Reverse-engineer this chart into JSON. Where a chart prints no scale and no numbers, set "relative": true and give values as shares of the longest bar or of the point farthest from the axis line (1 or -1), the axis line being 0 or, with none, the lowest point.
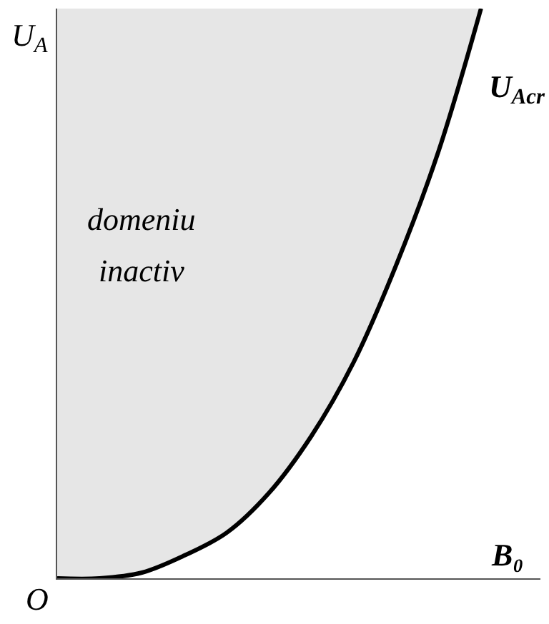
{
  "chart_data": {
    "type": "line",
    "relative": true,
    "xlabel": "B₀",
    "ylabel": "U$_{A}$",
    "categories": [
      null,
      null,
      null,
      null,
      null,
      null,
      null,
      null,
      null,
      null,
      null
    ],
    "series": [
      {
        "name": "U$_{Acr}$",
        "color": "#000000",
        "values": [
          0,
          0,
          0.01,
          0.04,
          0.08,
          0.15,
          0.25,
          0.38,
          0.55,
          0.75,
          1
        ],
        "lower": [
          0,
          0,
          0.01,
          0.04,
          0.08,
          0.15,
          0.25,
          0.38,
          0.55,
          0.75,
          1
        ],
        "upper": [
          1,
          1,
          1,
          1,
          1,
          1,
          1,
          1,
          1,
          1,
          1
        ]
      }
    ],
    "annotations": [
      "domeniu",
      "inactiv",
      "O"
    ],
    "legend": false
  }
}
